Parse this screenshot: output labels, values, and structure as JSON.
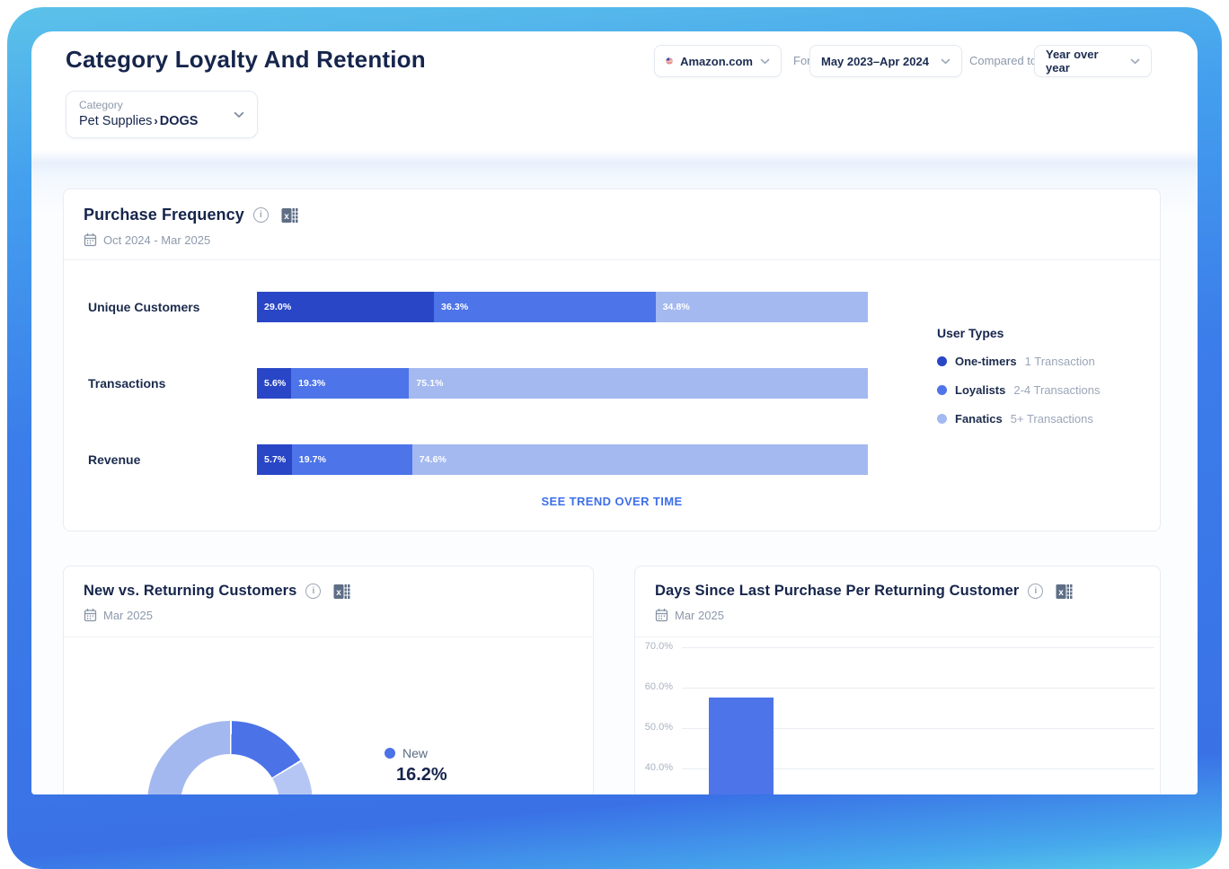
{
  "page": {
    "title": "Category Loyalty And Retention"
  },
  "theme": {
    "accent_blue": "#3e6fe8",
    "dark_navy": "#16254c",
    "muted_gray": "#8d99ab",
    "frame_gradient": [
      "#5cc2e9",
      "#3b7dea",
      "#58cbea"
    ]
  },
  "header": {
    "site_selector": {
      "value": "Amazon.com"
    },
    "for_label": "For",
    "period_selector": {
      "value": "May 2023–Apr 2024"
    },
    "compared_to_label": "Compared to",
    "comparison_selector": {
      "value": "Year over year"
    }
  },
  "category_selector": {
    "label": "Category",
    "path": "Pet Supplies",
    "separator": "›",
    "leaf": "DOGS"
  },
  "purchase_frequency": {
    "title": "Purchase Frequency",
    "date_range": "Oct 2024 - Mar 2025",
    "legend_title": "User Types",
    "legend": [
      {
        "label": "One-timers",
        "description": "1 Transaction",
        "color": "#2946c6"
      },
      {
        "label": "Loyalists",
        "description": "2-4 Transactions",
        "color": "#4d74e9"
      },
      {
        "label": "Fanatics",
        "description": "5+ Transactions",
        "color": "#a4b9f0"
      }
    ],
    "see_trend_link": "SEE TREND OVER TIME",
    "chart_data": {
      "type": "bar",
      "orientation": "horizontal",
      "stacked": true,
      "x_range": [
        0,
        100
      ],
      "value_format": "percent_1dp",
      "categories": [
        "Unique Customers",
        "Transactions",
        "Revenue"
      ],
      "series": [
        {
          "name": "One-timers",
          "color": "#2946c6",
          "values": [
            29.0,
            5.6,
            5.7
          ]
        },
        {
          "name": "Loyalists",
          "color": "#4d74e9",
          "values": [
            36.3,
            19.3,
            19.7
          ]
        },
        {
          "name": "Fanatics",
          "color": "#a4b9f0",
          "values": [
            34.8,
            75.1,
            74.6
          ]
        }
      ]
    }
  },
  "new_vs_returning": {
    "title": "New vs. Returning Customers",
    "date": "Mar 2025",
    "chart_data": {
      "type": "pie",
      "donut": true,
      "slices": [
        {
          "label": "New",
          "value": 16.2,
          "color": "#4c72e8"
        },
        {
          "label": "",
          "value": 13.8,
          "color": "#b6c6f4"
        },
        {
          "label": "",
          "value": 70.0,
          "color": "#a3b8ef"
        }
      ],
      "legend_visible": [
        {
          "label": "New",
          "value": "16.2%",
          "color": "#4c72e8"
        }
      ]
    }
  },
  "days_since_last_purchase": {
    "title": "Days Since Last Purchase Per Returning Customer",
    "date": "Mar 2025",
    "chart_data": {
      "type": "bar",
      "orientation": "vertical",
      "grid": true,
      "tick_format": "percent_1dp",
      "y_ticks_visible": [
        70.0,
        60.0,
        50.0,
        40.0
      ],
      "bars_visible": [
        {
          "label": "",
          "value": 57.5,
          "color": "#4d74e9"
        }
      ]
    }
  }
}
